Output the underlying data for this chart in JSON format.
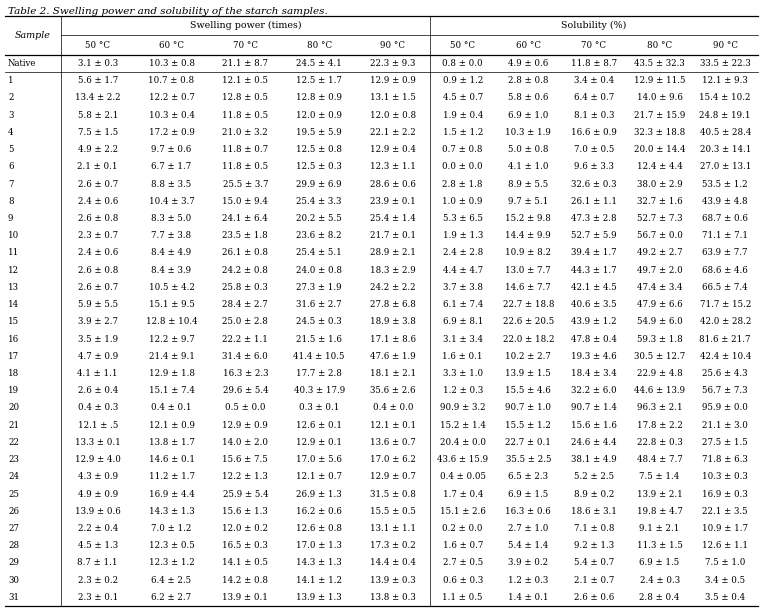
{
  "title": "Table 2. Swelling power and solubility of the starch samples.",
  "group1_label": "Swelling power (times)",
  "group2_label": "Solubility (%)",
  "temps": [
    "50 °C",
    "60 °C",
    "70 °C",
    "80 °C",
    "90 °C"
  ],
  "rows": [
    [
      "Native",
      "3.1 ± 0.3",
      "10.3 ± 0.8",
      "21.1 ± 8.7",
      "24.5 ± 4.1",
      "22.3 ± 9.3",
      "0.8 ± 0.0",
      "4.9 ± 0.6",
      "11.8 ± 8.7",
      "43.5 ± 32.3",
      "33.5 ± 22.3"
    ],
    [
      "1",
      "5.6 ± 1.7",
      "10.7 ± 0.8",
      "12.1 ± 0.5",
      "12.5 ± 1.7",
      "12.9 ± 0.9",
      "0.9 ± 1.2",
      "2.8 ± 0.8",
      "3.4 ± 0.4",
      "12.9 ± 11.5",
      "12.1 ± 9.3"
    ],
    [
      "2",
      "13.4 ± 2.2",
      "12.2 ± 0.7",
      "12.8 ± 0.5",
      "12.8 ± 0.9",
      "13.1 ± 1.5",
      "4.5 ± 0.7",
      "5.8 ± 0.6",
      "6.4 ± 0.7",
      "14.0 ± 9.6",
      "15.4 ± 10.2"
    ],
    [
      "3",
      "5.8 ± 2.1",
      "10.3 ± 0.4",
      "11.8 ± 0.5",
      "12.0 ± 0.9",
      "12.0 ± 0.8",
      "1.9 ± 0.4",
      "6.9 ± 1.0",
      "8.1 ± 0.3",
      "21.7 ± 15.9",
      "24.8 ± 19.1"
    ],
    [
      "4",
      "7.5 ± 1.5",
      "17.2 ± 0.9",
      "21.0 ± 3.2",
      "19.5 ± 5.9",
      "22.1 ± 2.2",
      "1.5 ± 1.2",
      "10.3 ± 1.9",
      "16.6 ± 0.9",
      "32.3 ± 18.8",
      "40.5 ± 28.4"
    ],
    [
      "5",
      "4.9 ± 2.2",
      "9.7 ± 0.6",
      "11.8 ± 0.7",
      "12.5 ± 0.8",
      "12.9 ± 0.4",
      "0.7 ± 0.8",
      "5.0 ± 0.8",
      "7.0 ± 0.5",
      "20.0 ± 14.4",
      "20.3 ± 14.1"
    ],
    [
      "6",
      "2.1 ± 0.1",
      "6.7 ± 1.7",
      "11.8 ± 0.5",
      "12.5 ± 0.3",
      "12.3 ± 1.1",
      "0.0 ± 0.0",
      "4.1 ± 1.0",
      "9.6 ± 3.3",
      "12.4 ± 4.4",
      "27.0 ± 13.1"
    ],
    [
      "7",
      "2.6 ± 0.7",
      "8.8 ± 3.5",
      "25.5 ± 3.7",
      "29.9 ± 6.9",
      "28.6 ± 0.6",
      "2.8 ± 1.8",
      "8.9 ± 5.5",
      "32.6 ± 0.3",
      "38.0 ± 2.9",
      "53.5 ± 1.2"
    ],
    [
      "8",
      "2.4 ± 0.6",
      "10.4 ± 3.7",
      "15.0 ± 9.4",
      "25.4 ± 3.3",
      "23.9 ± 0.1",
      "1.0 ± 0.9",
      "9.7 ± 5.1",
      "26.1 ± 1.1",
      "32.7 ± 1.6",
      "43.9 ± 4.8"
    ],
    [
      "9",
      "2.6 ± 0.8",
      "8.3 ± 5.0",
      "24.1 ± 6.4",
      "20.2 ± 5.5",
      "25.4 ± 1.4",
      "5.3 ± 6.5",
      "15.2 ± 9.8",
      "47.3 ± 2.8",
      "52.7 ± 7.3",
      "68.7 ± 0.6"
    ],
    [
      "10",
      "2.3 ± 0.7",
      "7.7 ± 3.8",
      "23.5 ± 1.8",
      "23.6 ± 8.2",
      "21.7 ± 0.1",
      "1.9 ± 1.3",
      "14.4 ± 9.9",
      "52.7 ± 5.9",
      "56.7 ± 0.0",
      "71.1 ± 7.1"
    ],
    [
      "11",
      "2.4 ± 0.6",
      "8.4 ± 4.9",
      "26.1 ± 0.8",
      "25.4 ± 5.1",
      "28.9 ± 2.1",
      "2.4 ± 2.8",
      "10.9 ± 8.2",
      "39.4 ± 1.7",
      "49.2 ± 2.7",
      "63.9 ± 7.7"
    ],
    [
      "12",
      "2.6 ± 0.8",
      "8.4 ± 3.9",
      "24.2 ± 0.8",
      "24.0 ± 0.8",
      "18.3 ± 2.9",
      "4.4 ± 4.7",
      "13.0 ± 7.7",
      "44.3 ± 1.7",
      "49.7 ± 2.0",
      "68.6 ± 4.6"
    ],
    [
      "13",
      "2.6 ± 0.7",
      "10.5 ± 4.2",
      "25.8 ± 0.3",
      "27.3 ± 1.9",
      "24.2 ± 2.2",
      "3.7 ± 3.8",
      "14.6 ± 7.7",
      "42.1 ± 4.5",
      "47.4 ± 3.4",
      "66.5 ± 7.4"
    ],
    [
      "14",
      "5.9 ± 5.5",
      "15.1 ± 9.5",
      "28.4 ± 2.7",
      "31.6 ± 2.7",
      "27.8 ± 6.8",
      "6.1 ± 7.4",
      "22.7 ± 18.8",
      "40.6 ± 3.5",
      "47.9 ± 6.6",
      "71.7 ± 15.2"
    ],
    [
      "15",
      "3.9 ± 2.7",
      "12.8 ± 10.4",
      "25.0 ± 2.8",
      "24.5 ± 0.3",
      "18.9 ± 3.8",
      "6.9 ± 8.1",
      "22.6 ± 20.5",
      "43.9 ± 1.2",
      "54.9 ± 6.0",
      "42.0 ± 28.2"
    ],
    [
      "16",
      "3.5 ± 1.9",
      "12.2 ± 9.7",
      "22.2 ± 1.1",
      "21.5 ± 1.6",
      "17.1 ± 8.6",
      "3.1 ± 3.4",
      "22.0 ± 18.2",
      "47.8 ± 0.4",
      "59.3 ± 1.8",
      "81.6 ± 21.7"
    ],
    [
      "17",
      "4.7 ± 0.9",
      "21.4 ± 9.1",
      "31.4 ± 6.0",
      "41.4 ± 10.5",
      "47.6 ± 1.9",
      "1.6 ± 0.1",
      "10.2 ± 2.7",
      "19.3 ± 4.6",
      "30.5 ± 12.7",
      "42.4 ± 10.4"
    ],
    [
      "18",
      "4.1 ± 1.1",
      "12.9 ± 1.8",
      "16.3 ± 2.3",
      "17.7 ± 2.8",
      "18.1 ± 2.1",
      "3.3 ± 1.0",
      "13.9 ± 1.5",
      "18.4 ± 3.4",
      "22.9 ± 4.8",
      "25.6 ± 4.3"
    ],
    [
      "19",
      "2.6 ± 0.4",
      "15.1 ± 7.4",
      "29.6 ± 5.4",
      "40.3 ± 17.9",
      "35.6 ± 2.6",
      "1.2 ± 0.3",
      "15.5 ± 4.6",
      "32.2 ± 6.0",
      "44.6 ± 13.9",
      "56.7 ± 7.3"
    ],
    [
      "20",
      "0.4 ± 0.3",
      "0.4 ± 0.1",
      "0.5 ± 0.0",
      "0.3 ± 0.1",
      "0.4 ± 0.0",
      "90.9 ± 3.2",
      "90.7 ± 1.0",
      "90.7 ± 1.4",
      "96.3 ± 2.1",
      "95.9 ± 0.0"
    ],
    [
      "21",
      "12.1 ± .5",
      "12.1 ± 0.9",
      "12.9 ± 0.9",
      "12.6 ± 0.1",
      "12.1 ± 0.1",
      "15.2 ± 1.4",
      "15.5 ± 1.2",
      "15.6 ± 1.6",
      "17.8 ± 2.2",
      "21.1 ± 3.0"
    ],
    [
      "22",
      "13.3 ± 0.1",
      "13.8 ± 1.7",
      "14.0 ± 2.0",
      "12.9 ± 0.1",
      "13.6 ± 0.7",
      "20.4 ± 0.0",
      "22.7 ± 0.1",
      "24.6 ± 4.4",
      "22.8 ± 0.3",
      "27.5 ± 1.5"
    ],
    [
      "23",
      "12.9 ± 4.0",
      "14.6 ± 0.1",
      "15.6 ± 7.5",
      "17.0 ± 5.6",
      "17.0 ± 6.2",
      "43.6 ± 15.9",
      "35.5 ± 2.5",
      "38.1 ± 4.9",
      "48.4 ± 7.7",
      "71.8 ± 6.3"
    ],
    [
      "24",
      "4.3 ± 0.9",
      "11.2 ± 1.7",
      "12.2 ± 1.3",
      "12.1 ± 0.7",
      "12.9 ± 0.7",
      "0.4 ± 0.05",
      "6.5 ± 2.3",
      "5.2 ± 2.5",
      "7.5 ± 1.4",
      "10.3 ± 0.3"
    ],
    [
      "25",
      "4.9 ± 0.9",
      "16.9 ± 4.4",
      "25.9 ± 5.4",
      "26.9 ± 1.3",
      "31.5 ± 0.8",
      "1.7 ± 0.4",
      "6.9 ± 1.5",
      "8.9 ± 0.2",
      "13.9 ± 2.1",
      "16.9 ± 0.3"
    ],
    [
      "26",
      "13.9 ± 0.6",
      "14.3 ± 1.3",
      "15.6 ± 1.3",
      "16.2 ± 0.6",
      "15.5 ± 0.5",
      "15.1 ± 2.6",
      "16.3 ± 0.6",
      "18.6 ± 3.1",
      "19.8 ± 4.7",
      "22.1 ± 3.5"
    ],
    [
      "27",
      "2.2 ± 0.4",
      "7.0 ± 1.2",
      "12.0 ± 0.2",
      "12.6 ± 0.8",
      "13.1 ± 1.1",
      "0.2 ± 0.0",
      "2.7 ± 1.0",
      "7.1 ± 0.8",
      "9.1 ± 2.1",
      "10.9 ± 1.7"
    ],
    [
      "28",
      "4.5 ± 1.3",
      "12.3 ± 0.5",
      "16.5 ± 0.3",
      "17.0 ± 1.3",
      "17.3 ± 0.2",
      "1.6 ± 0.7",
      "5.4 ± 1.4",
      "9.2 ± 1.3",
      "11.3 ± 1.5",
      "12.6 ± 1.1"
    ],
    [
      "29",
      "8.7 ± 1.1",
      "12.3 ± 1.2",
      "14.1 ± 0.5",
      "14.3 ± 1.3",
      "14.4 ± 0.4",
      "2.7 ± 0.5",
      "3.9 ± 0.2",
      "5.4 ± 0.7",
      "6.9 ± 1.5",
      "7.5 ± 1.0"
    ],
    [
      "30",
      "2.3 ± 0.2",
      "6.4 ± 2.5",
      "14.2 ± 0.8",
      "14.1 ± 1.2",
      "13.9 ± 0.3",
      "0.6 ± 0.3",
      "1.2 ± 0.3",
      "2.1 ± 0.7",
      "2.4 ± 0.3",
      "3.4 ± 0.5"
    ],
    [
      "31",
      "2.3 ± 0.1",
      "6.2 ± 2.7",
      "13.9 ± 0.1",
      "13.9 ± 1.3",
      "13.8 ± 0.3",
      "1.1 ± 0.5",
      "1.4 ± 0.1",
      "2.6 ± 0.6",
      "2.8 ± 0.4",
      "3.5 ± 0.4"
    ]
  ],
  "text_color": "#000000",
  "line_color": "#000000",
  "font_size": 6.2,
  "header_font_size": 6.8,
  "title_font_size": 7.5
}
